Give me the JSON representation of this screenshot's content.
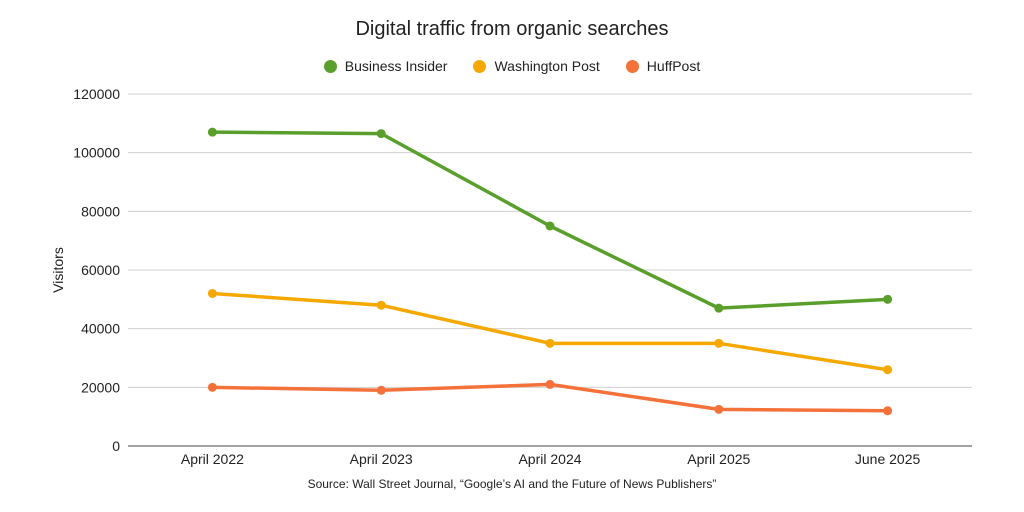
{
  "chart_data": {
    "type": "line",
    "title": "Digital traffic from organic searches",
    "xlabel": "",
    "ylabel": "Visitors",
    "categories": [
      "April 2022",
      "April 2023",
      "April 2024",
      "April 2025",
      "June 2025"
    ],
    "ylim": [
      0,
      120000
    ],
    "yticks": [
      "0",
      "20000",
      "40000",
      "60000",
      "80000",
      "100000",
      "120000"
    ],
    "grid": true,
    "legend_position": "top-center",
    "series": [
      {
        "name": "Business Insider",
        "color": "#5a9f2b",
        "values": [
          107000,
          106500,
          75000,
          47000,
          50000
        ]
      },
      {
        "name": "Washington Post",
        "color": "#f5a800",
        "values": [
          52000,
          48000,
          35000,
          35000,
          26000
        ]
      },
      {
        "name": "HuffPost",
        "color": "#f4713a",
        "values": [
          20000,
          19000,
          21000,
          12500,
          12000
        ]
      }
    ],
    "source": "Source: Wall Street Journal, “Google’s AI and the Future of News Publishers”"
  }
}
